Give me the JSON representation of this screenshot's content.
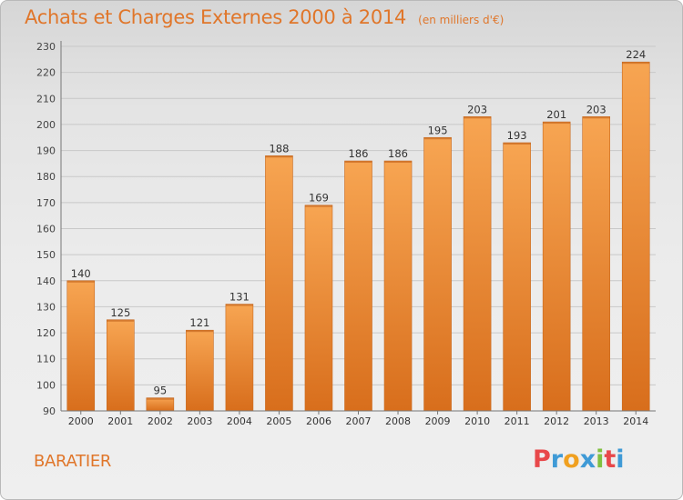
{
  "chart_data": {
    "type": "bar",
    "title": "Achats et Charges Externes 2000 à 2014",
    "subtitle": "(en milliers d'€)",
    "categories": [
      "2000",
      "2001",
      "2002",
      "2003",
      "2004",
      "2005",
      "2006",
      "2007",
      "2008",
      "2009",
      "2010",
      "2011",
      "2012",
      "2013",
      "2014"
    ],
    "values": [
      140,
      125,
      95,
      121,
      131,
      188,
      169,
      186,
      186,
      195,
      203,
      193,
      201,
      203,
      224
    ],
    "ylim": [
      90,
      230
    ],
    "yticks": [
      90,
      100,
      110,
      120,
      130,
      140,
      150,
      160,
      170,
      180,
      190,
      200,
      210,
      220,
      230
    ],
    "xlabel": "",
    "ylabel": "",
    "grid": true,
    "bar_color": "#f0903a",
    "title_color": "#e0762a"
  },
  "footer": {
    "commune": "BARATIER",
    "brand": "Proxiti",
    "brand_colors": [
      "#e8484a",
      "#3f9ad6",
      "#f0a020",
      "#3f9ad6",
      "#80c040",
      "#e8484a",
      "#3f9ad6"
    ]
  }
}
